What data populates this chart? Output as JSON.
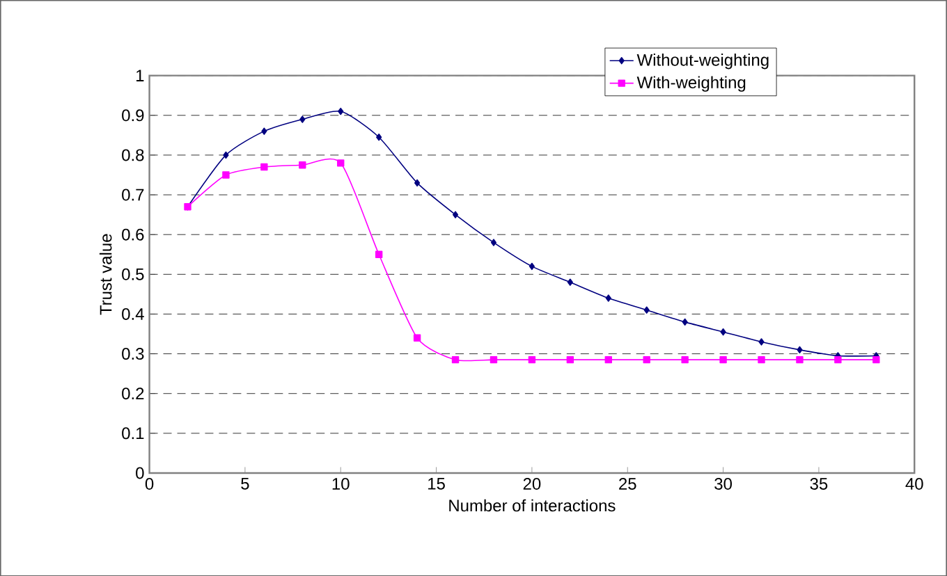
{
  "chart_data": {
    "type": "line",
    "xlabel": "Number of interactions",
    "ylabel": "Trust value",
    "x": [
      2,
      4,
      6,
      8,
      10,
      12,
      14,
      16,
      18,
      20,
      22,
      24,
      26,
      28,
      30,
      32,
      34,
      36,
      38
    ],
    "series": [
      {
        "name": "Without-weighting",
        "color": "#000080",
        "marker": "diamond",
        "values": [
          0.67,
          0.8,
          0.86,
          0.89,
          0.91,
          0.845,
          0.73,
          0.65,
          0.58,
          0.52,
          0.48,
          0.44,
          0.41,
          0.38,
          0.355,
          0.33,
          0.31,
          0.295,
          0.295
        ]
      },
      {
        "name": "With-weighting",
        "color": "#ff00ff",
        "marker": "square",
        "values": [
          0.67,
          0.75,
          0.77,
          0.775,
          0.78,
          0.55,
          0.34,
          0.285,
          0.285,
          0.285,
          0.285,
          0.285,
          0.285,
          0.285,
          0.285,
          0.285,
          0.285,
          0.285,
          0.285
        ]
      }
    ],
    "xlim": [
      0,
      40
    ],
    "xticks": [
      0,
      5,
      10,
      15,
      20,
      25,
      30,
      35,
      40
    ],
    "ylim": [
      0,
      1
    ],
    "yticks": [
      0,
      0.1,
      0.2,
      0.3,
      0.4,
      0.5,
      0.6,
      0.7,
      0.8,
      0.9,
      1
    ],
    "grid": "y",
    "legend": "top right",
    "line_style": "solid"
  }
}
